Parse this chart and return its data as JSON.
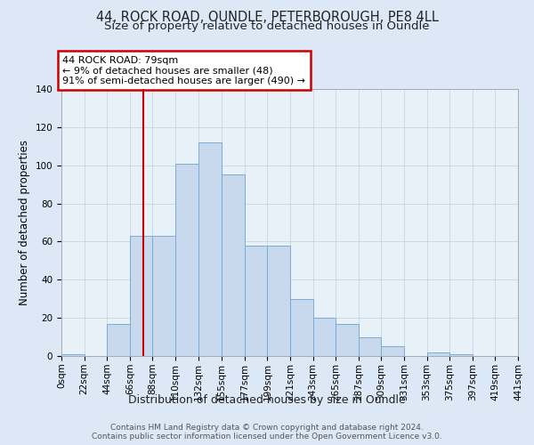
{
  "title1": "44, ROCK ROAD, OUNDLE, PETERBOROUGH, PE8 4LL",
  "title2": "Size of property relative to detached houses in Oundle",
  "xlabel": "Distribution of detached houses by size in Oundle",
  "ylabel": "Number of detached properties",
  "bin_edges": [
    0,
    22,
    44,
    66,
    88,
    110,
    132,
    155,
    177,
    199,
    221,
    243,
    265,
    287,
    309,
    331,
    353,
    375,
    397,
    419,
    441
  ],
  "bar_heights": [
    1,
    0,
    17,
    63,
    63,
    101,
    112,
    95,
    58,
    58,
    30,
    20,
    17,
    10,
    5,
    0,
    2,
    1,
    0,
    0
  ],
  "bar_color": "#c8d9ee",
  "bar_edge_color": "#7aadd4",
  "property_size": 79,
  "property_line_color": "#cc0000",
  "annotation_text": "44 ROCK ROAD: 79sqm\n← 9% of detached houses are smaller (48)\n91% of semi-detached houses are larger (490) →",
  "annotation_box_color": "white",
  "annotation_box_edge_color": "#cc0000",
  "ylim": [
    0,
    140
  ],
  "yticks": [
    0,
    20,
    40,
    60,
    80,
    100,
    120,
    140
  ],
  "background_color": "#dce8f5",
  "plot_background_color": "#e8f0f8",
  "grid_color": "#c0cfe0",
  "footer_text": "Contains HM Land Registry data © Crown copyright and database right 2024.\nContains public sector information licensed under the Open Government Licence v3.0.",
  "title1_fontsize": 10.5,
  "title2_fontsize": 9.5,
  "xlabel_fontsize": 9,
  "ylabel_fontsize": 8.5,
  "tick_fontsize": 7.5,
  "annotation_fontsize": 8,
  "footer_fontsize": 6.5
}
